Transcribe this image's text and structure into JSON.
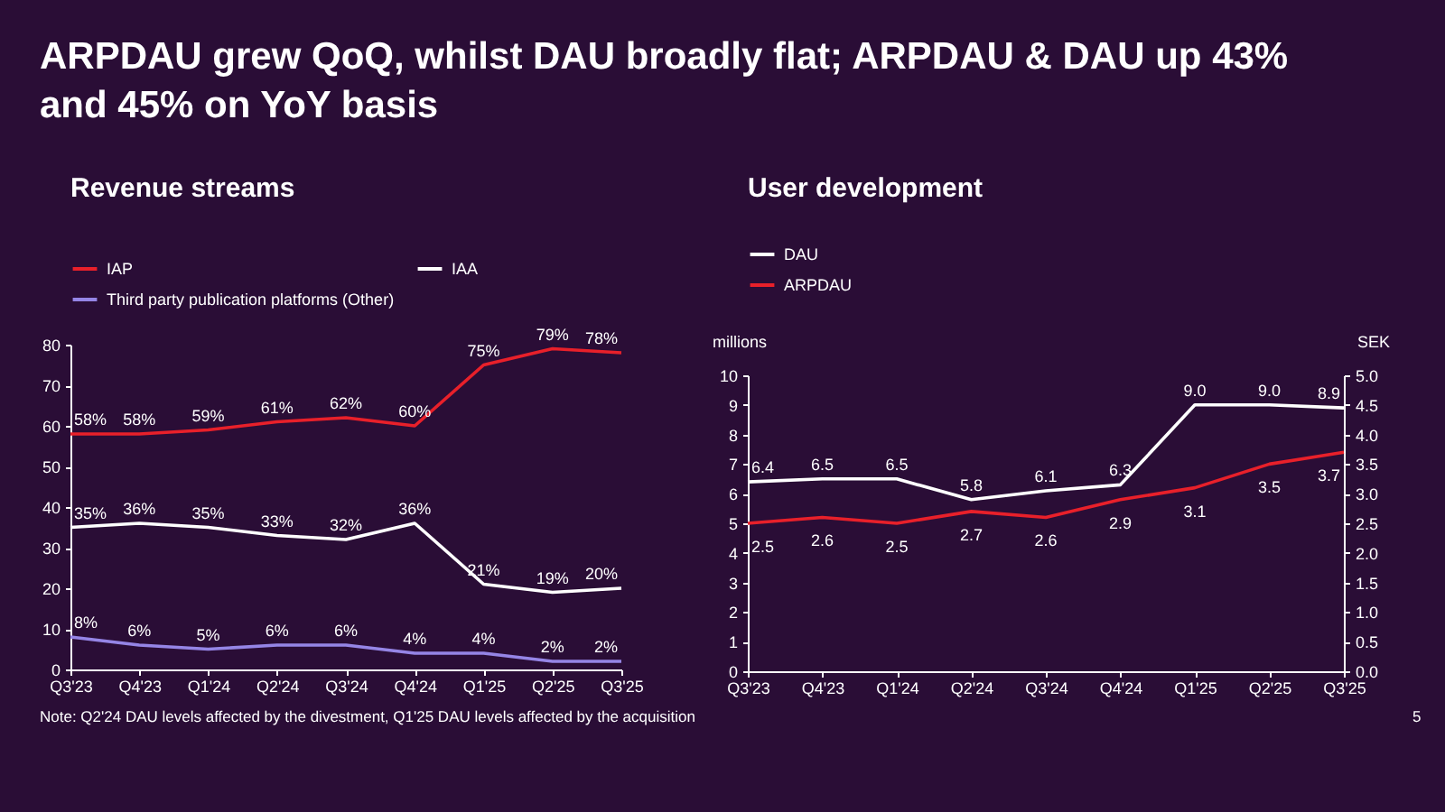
{
  "chart_data": [
    {
      "type": "line",
      "title": "ARPDAU grew QoQ, whilst DAU broadly flat; ARPDAU & DAU up 43% and 45% on YoY basis",
      "subtitle": "Revenue streams",
      "categories": [
        "Q3'23",
        "Q4'23",
        "Q1'24",
        "Q2'24",
        "Q3'24",
        "Q4'24",
        "Q1'25",
        "Q2'25",
        "Q3'25"
      ],
      "series": [
        {
          "name": "IAP",
          "color": "#e8202a",
          "values": [
            58,
            58,
            59,
            61,
            62,
            60,
            75,
            79,
            78
          ],
          "value_labels": [
            "58%",
            "58%",
            "59%",
            "61%",
            "62%",
            "60%",
            "75%",
            "79%",
            "78%"
          ]
        },
        {
          "name": "Third party publication platforms (Other)",
          "color": "#9585e6",
          "values": [
            8,
            6,
            5,
            6,
            6,
            4,
            4,
            2,
            2
          ],
          "value_labels": [
            "8%",
            "6%",
            "5%",
            "6%",
            "6%",
            "4%",
            "4%",
            "2%",
            "2%"
          ]
        },
        {
          "name": "IAA",
          "color": "#ffffff",
          "values": [
            35,
            36,
            35,
            33,
            32,
            36,
            21,
            19,
            20
          ],
          "value_labels": [
            "35%",
            "36%",
            "35%",
            "33%",
            "32%",
            "36%",
            "21%",
            "19%",
            "20%"
          ]
        }
      ],
      "ylim": [
        0,
        80
      ],
      "yticks": [
        0,
        10,
        20,
        30,
        40,
        50,
        60,
        70,
        80
      ],
      "grid": false,
      "legend": "top left",
      "annotations": [
        "Note: Q2'24 DAU levels affected by the divestment, Q1'25 DAU levels affected by the acquisition"
      ]
    },
    {
      "type": "line",
      "title": "User development",
      "ylabel": "millions",
      "y2label": "SEK",
      "categories": [
        "Q3'23",
        "Q4'23",
        "Q1'24",
        "Q2'24",
        "Q3'24",
        "Q4'24",
        "Q1'25",
        "Q2'25",
        "Q3'25"
      ],
      "series": [
        {
          "name": "DAU",
          "color": "#ffffff",
          "values": [
            6.4,
            6.5,
            6.5,
            5.8,
            6.1,
            6.3,
            9.0,
            9.0,
            8.9
          ],
          "value_labels": [
            "6.4",
            "6.5",
            "6.5",
            "5.8",
            "6.1",
            "6.3",
            "9.0",
            "9.0",
            "8.9"
          ]
        },
        {
          "name": "ARPDAU",
          "color": "#e8202a",
          "axis": "y2",
          "values": [
            2.5,
            2.6,
            2.5,
            2.7,
            2.6,
            2.9,
            3.1,
            3.5,
            3.7
          ],
          "value_labels": [
            "2.5",
            "2.6",
            "2.5",
            "2.7",
            "2.6",
            "2.9",
            "3.1",
            "3.5",
            "3.7"
          ]
        }
      ],
      "ylim": [
        0,
        10
      ],
      "yticks": [
        0,
        1,
        2,
        3,
        4,
        5,
        6,
        7,
        8,
        9,
        10
      ],
      "y2lim": [
        0,
        5
      ],
      "y2ticks": [
        {
          "value": 0,
          "label": "0.0"
        },
        {
          "value": 0.5,
          "label": "0.5"
        },
        {
          "value": 1,
          "label": "1.0"
        },
        {
          "value": 1.5,
          "label": "1.5"
        },
        {
          "value": 2,
          "label": "2.0"
        },
        {
          "value": 2.5,
          "label": "2.5"
        },
        {
          "value": 3,
          "label": "3.0"
        },
        {
          "value": 3.5,
          "label": "3.5"
        },
        {
          "value": 4,
          "label": "4.0"
        },
        {
          "value": 4.5,
          "label": "4.5"
        },
        {
          "value": 5,
          "label": "5.0"
        }
      ],
      "grid": false,
      "legend": "top left",
      "annotations": [
        "5"
      ]
    }
  ]
}
